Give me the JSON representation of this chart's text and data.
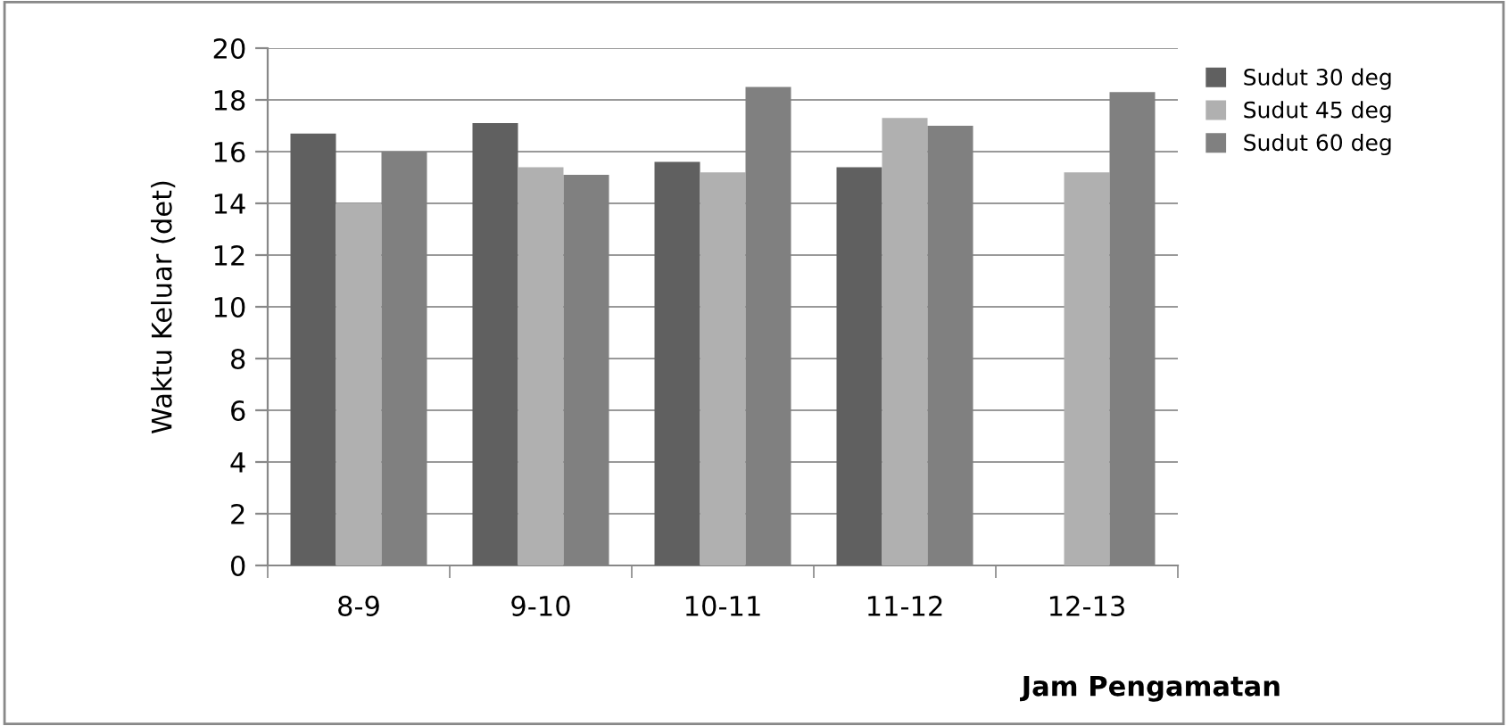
{
  "chart_data": {
    "type": "bar",
    "xlabel": "Jam Pengamatan",
    "ylabel": "Waktu Keluar (det)",
    "categories": [
      "8-9",
      "9-10",
      "10-11",
      "11-12",
      "12-13"
    ],
    "series": [
      {
        "name": "Sudut 30 deg",
        "color": "#606060",
        "values": [
          16.7,
          17.1,
          15.6,
          15.4,
          null
        ]
      },
      {
        "name": "Sudut 45 deg",
        "color": "#b0b0b0",
        "values": [
          14.0,
          15.4,
          15.2,
          17.3,
          15.2
        ]
      },
      {
        "name": "Sudut 60 deg",
        "color": "#808080",
        "values": [
          16.0,
          15.1,
          18.5,
          17.0,
          18.3
        ]
      }
    ],
    "ylim": [
      0,
      20
    ],
    "yticks": [
      0,
      2,
      4,
      6,
      8,
      10,
      12,
      14,
      16,
      18,
      20
    ],
    "grid": "y",
    "legend": "right"
  }
}
